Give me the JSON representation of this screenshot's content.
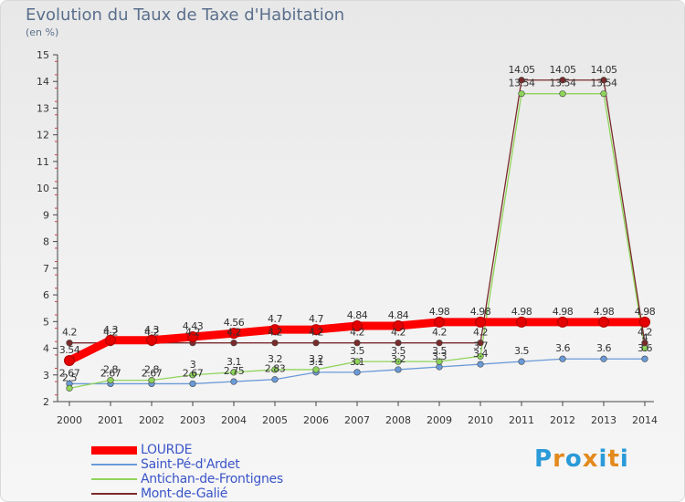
{
  "title": "Evolution du Taux de Taxe d'Habitation",
  "unit_label": "(en %)",
  "logo": {
    "text": "Proxiti",
    "letters": [
      "P",
      "r",
      "o",
      "x",
      "i",
      "t",
      "i"
    ],
    "colors": [
      "#2a9ad8",
      "#e38a1e",
      "#2a9ad8",
      "#e38a1e",
      "#2a9ad8",
      "#e38a1e",
      "#2a9ad8"
    ]
  },
  "chart_data": {
    "type": "line",
    "x": [
      "2000",
      "2001",
      "2002",
      "2003",
      "2004",
      "2005",
      "2006",
      "2007",
      "2008",
      "2009",
      "2010",
      "2011",
      "2012",
      "2013",
      "2014"
    ],
    "ylim": [
      2,
      15
    ],
    "yticks": [
      2,
      3,
      4,
      5,
      6,
      7,
      8,
      9,
      10,
      11,
      12,
      13,
      14,
      15
    ],
    "grid": false,
    "legend": "bottom-left",
    "series": [
      {
        "name": "LOURDE",
        "color": "#ff0000",
        "values": [
          3.54,
          4.3,
          4.3,
          4.43,
          4.56,
          4.7,
          4.7,
          4.84,
          4.84,
          4.98,
          4.98,
          4.98,
          4.98,
          4.98,
          4.98
        ],
        "labels": [
          "3.54",
          "4.3",
          "4.3",
          "4.43",
          "4.56",
          "4.7",
          "4.7",
          "4.84",
          "4.84",
          "4.98",
          "4.98",
          "4.98",
          "4.98",
          "4.98",
          "4.98"
        ]
      },
      {
        "name": "Saint-Pé-d'Ardet",
        "color": "#6a9ad8",
        "values": [
          2.67,
          2.67,
          2.67,
          2.67,
          2.75,
          2.83,
          3.1,
          3.1,
          3.2,
          3.3,
          3.4,
          3.5,
          3.6,
          3.6,
          3.6
        ],
        "labels": [
          "2.67",
          "2.67",
          "2.67",
          "2.67",
          "2.75",
          "2.83",
          "3.1",
          "3.1",
          "3.2",
          "3.3",
          "3.4",
          "3.5",
          "3.6",
          "3.6",
          "3.6"
        ]
      },
      {
        "name": "Antichan-de-Frontignes",
        "color": "#8fd45a",
        "values": [
          2.5,
          2.8,
          2.8,
          3.0,
          3.1,
          3.2,
          3.2,
          3.5,
          3.5,
          3.5,
          3.7,
          13.54,
          13.54,
          13.54,
          4.0
        ],
        "labels": [
          "2.5",
          "2.8",
          "2.8",
          "3",
          "3.1",
          "3.2",
          "3.2",
          "3.5",
          "3.5",
          "3.5",
          "3.7",
          "13.54",
          "13.54",
          "13.54",
          "4"
        ]
      },
      {
        "name": "Mont-de-Galié",
        "color": "#7a2a2a",
        "values": [
          4.2,
          4.2,
          4.2,
          4.2,
          4.2,
          4.2,
          4.2,
          4.2,
          4.2,
          4.2,
          4.2,
          14.05,
          14.05,
          14.05,
          4.2
        ],
        "labels": [
          "4.2",
          "4.2",
          "4.2",
          "4.2",
          "4.2",
          "4.2",
          "4.2",
          "4.2",
          "4.2",
          "4.2",
          "4.2",
          "14.05",
          "14.05",
          "14.05",
          "4.2"
        ]
      }
    ]
  }
}
